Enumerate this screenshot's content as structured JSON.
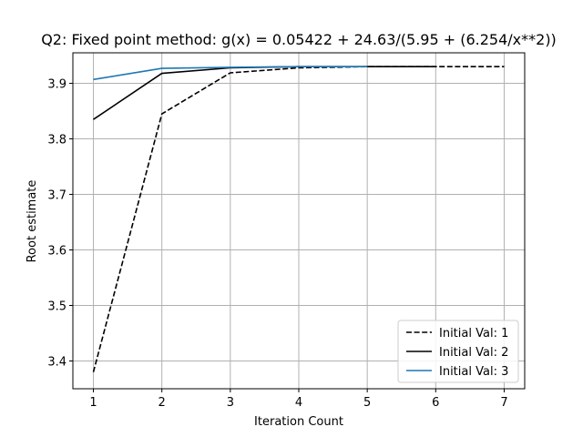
{
  "chart_data": {
    "type": "line",
    "title": "Q2: Fixed point method: g(x) = 0.05422 + 24.63/(5.95 + (6.254/x**2))",
    "xlabel": "Iteration Count",
    "ylabel": "Root estimate",
    "xlim": [
      0.7,
      7.3
    ],
    "ylim": [
      3.35,
      3.955
    ],
    "xticks": [
      1,
      2,
      3,
      4,
      5,
      6,
      7
    ],
    "yticks": [
      3.4,
      3.5,
      3.6,
      3.7,
      3.8,
      3.9
    ],
    "grid": true,
    "legend_position": "lower-right",
    "series": [
      {
        "name": "Initial Val: 1",
        "color": "#000000",
        "dash": "dashed",
        "x": [
          1,
          2,
          3,
          4,
          5,
          6,
          7
        ],
        "y": [
          3.38,
          3.845,
          3.919,
          3.928,
          3.93,
          3.93,
          3.93
        ]
      },
      {
        "name": "Initial Val: 2",
        "color": "#000000",
        "dash": "solid",
        "x": [
          1,
          2,
          3,
          4,
          5,
          6
        ],
        "y": [
          3.835,
          3.918,
          3.928,
          3.93,
          3.93,
          3.93
        ]
      },
      {
        "name": "Initial Val: 3",
        "color": "#1f77b4",
        "dash": "solid",
        "x": [
          1,
          2,
          3,
          4,
          5
        ],
        "y": [
          3.907,
          3.927,
          3.929,
          3.93,
          3.93
        ]
      }
    ]
  }
}
